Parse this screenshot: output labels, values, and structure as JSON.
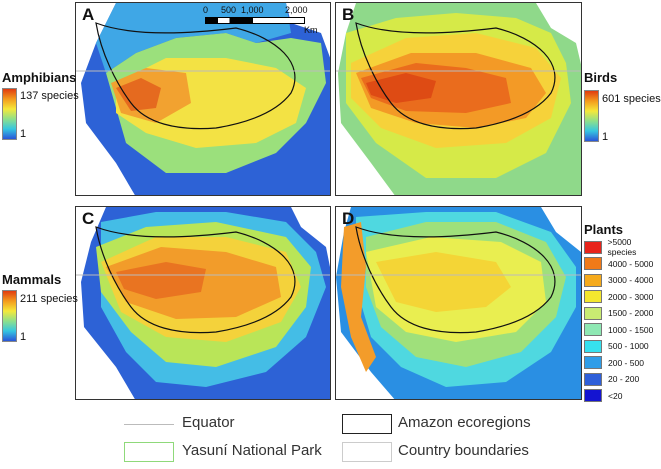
{
  "panels": [
    {
      "letter": "A",
      "colors": [
        "#2d62d6",
        "#3fa7e6",
        "#9be07c",
        "#f3e244",
        "#f2a230",
        "#e56a1f"
      ]
    },
    {
      "letter": "B",
      "colors": [
        "#8fd98a",
        "#d6ea48",
        "#f6d23a",
        "#f39a26",
        "#ea6c1d",
        "#de4b14"
      ]
    },
    {
      "letter": "C",
      "colors": [
        "#2d62d6",
        "#44bde6",
        "#b9e558",
        "#f4d23b",
        "#f29c2a",
        "#e97421"
      ]
    },
    {
      "letter": "D",
      "colors": [
        "#2a8fe3",
        "#4fd8e0",
        "#9fe07b",
        "#e9ee50",
        "#f4d536",
        "#f39c2a"
      ]
    }
  ],
  "legends": {
    "amphibians": {
      "title": "Amphibians",
      "max": "137 species",
      "min": "1"
    },
    "birds": {
      "title": "Birds",
      "max": "601 species",
      "min": "1"
    },
    "mammals": {
      "title": "Mammals",
      "max": "211 species",
      "min": "1"
    },
    "plants": {
      "title": "Plants",
      "classes": [
        {
          "label": ">5000 species",
          "color": "#e8241b"
        },
        {
          "label": "4000 - 5000",
          "color": "#f07a18"
        },
        {
          "label": "3000 - 4000",
          "color": "#f5aa1c"
        },
        {
          "label": "2000 - 3000",
          "color": "#f4e72e"
        },
        {
          "label": "1500 - 2000",
          "color": "#c9ec72"
        },
        {
          "label": "1000 - 1500",
          "color": "#8ee8b3"
        },
        {
          "label": "500 - 1000",
          "color": "#36e1ef"
        },
        {
          "label": "200 - 500",
          "color": "#2f9de8"
        },
        {
          "label": "20 - 200",
          "color": "#2e5fd9"
        },
        {
          "label": "<20",
          "color": "#1414d1"
        }
      ]
    }
  },
  "scale_bar": {
    "ticks": [
      "0",
      "500",
      "1,000",
      "2,000"
    ],
    "unit": "Km"
  },
  "bottom_legend": {
    "equator": "Equator",
    "ecoregions": "Amazon ecoregions",
    "yasuni": "Yasuní National Park",
    "boundaries": "Country boundaries"
  }
}
